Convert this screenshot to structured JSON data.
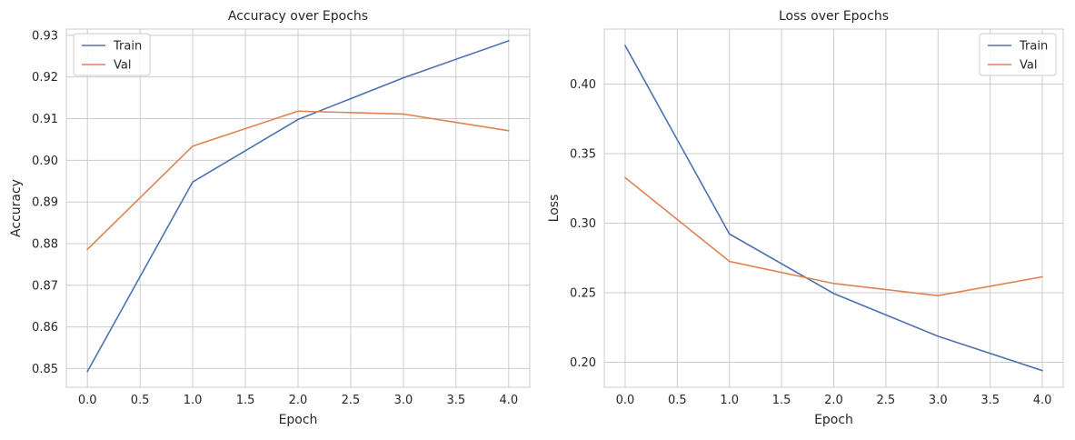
{
  "chart_data": [
    {
      "type": "line",
      "title": "Accuracy over Epochs",
      "xlabel": "Epoch",
      "ylabel": "Accuracy",
      "x": [
        0,
        1,
        2,
        3,
        4
      ],
      "xlim": [
        -0.2,
        4.2
      ],
      "ylim": [
        0.8455,
        0.9315
      ],
      "xticks": [
        0.0,
        0.5,
        1.0,
        1.5,
        2.0,
        2.5,
        3.0,
        3.5,
        4.0
      ],
      "xtick_labels": [
        "0.0",
        "0.5",
        "1.0",
        "1.5",
        "2.0",
        "2.5",
        "3.0",
        "3.5",
        "4.0"
      ],
      "yticks": [
        0.85,
        0.86,
        0.87,
        0.88,
        0.89,
        0.9,
        0.91,
        0.92,
        0.93
      ],
      "ytick_labels": [
        "0.85",
        "0.86",
        "0.87",
        "0.88",
        "0.89",
        "0.90",
        "0.91",
        "0.92",
        "0.93"
      ],
      "grid": true,
      "legend": "top-left",
      "series": [
        {
          "name": "Train",
          "color": "#4c72b0",
          "values": [
            0.8493,
            0.8948,
            0.9098,
            0.9198,
            0.9287
          ]
        },
        {
          "name": "Val",
          "color": "#dd8452",
          "values": [
            0.8786,
            0.9034,
            0.9118,
            0.9111,
            0.9071
          ]
        }
      ]
    },
    {
      "type": "line",
      "title": "Loss over Epochs",
      "xlabel": "Epoch",
      "ylabel": "Loss",
      "x": [
        0,
        1,
        2,
        3,
        4
      ],
      "xlim": [
        -0.2,
        4.2
      ],
      "ylim": [
        0.182,
        0.4395
      ],
      "xticks": [
        0.0,
        0.5,
        1.0,
        1.5,
        2.0,
        2.5,
        3.0,
        3.5,
        4.0
      ],
      "xtick_labels": [
        "0.0",
        "0.5",
        "1.0",
        "1.5",
        "2.0",
        "2.5",
        "3.0",
        "3.5",
        "4.0"
      ],
      "yticks": [
        0.2,
        0.25,
        0.3,
        0.35,
        0.4
      ],
      "ytick_labels": [
        "0.20",
        "0.25",
        "0.30",
        "0.35",
        "0.40"
      ],
      "grid": true,
      "legend": "top-right",
      "series": [
        {
          "name": "Train",
          "color": "#4c72b0",
          "values": [
            0.4277,
            0.2922,
            0.2494,
            0.2187,
            0.194
          ]
        },
        {
          "name": "Val",
          "color": "#dd8452",
          "values": [
            0.3327,
            0.2725,
            0.2566,
            0.2479,
            0.2614
          ]
        }
      ]
    }
  ]
}
